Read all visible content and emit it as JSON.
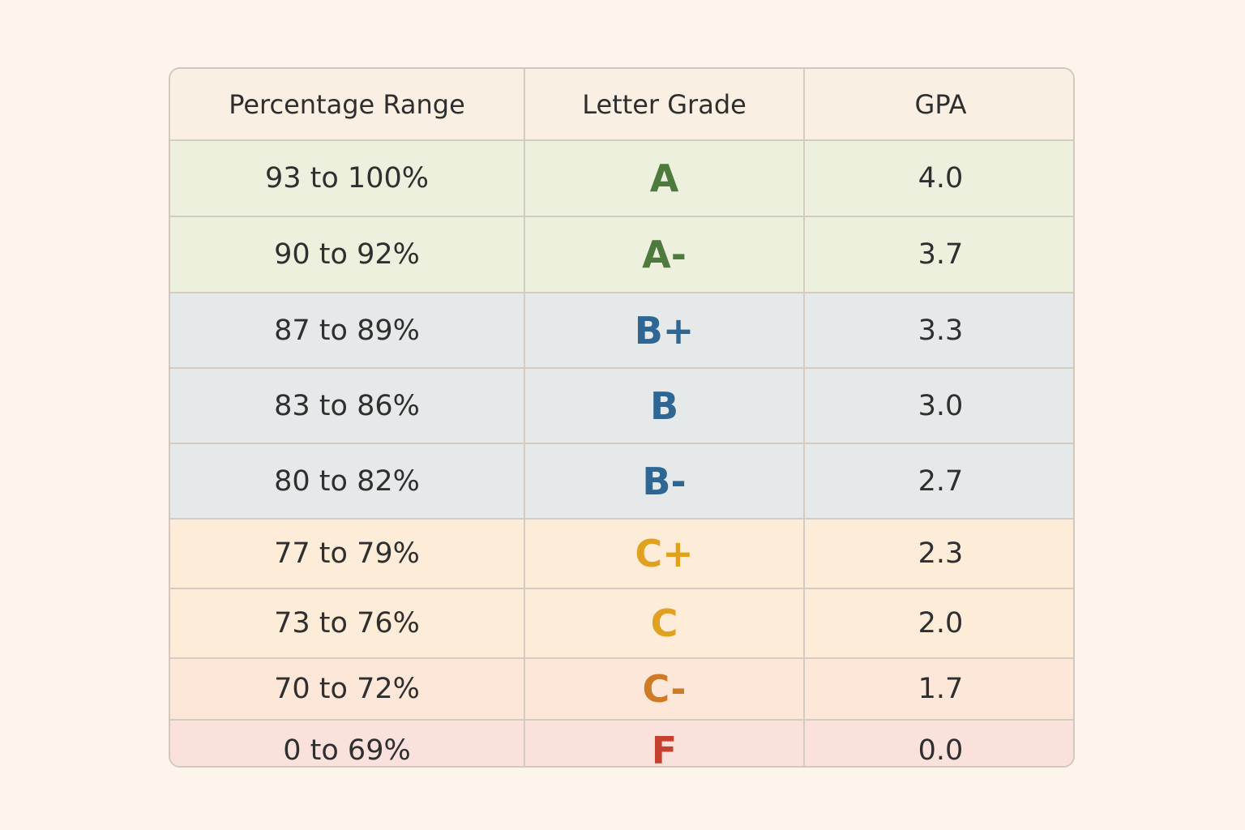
{
  "colors": {
    "background": "#fdf4ec",
    "grade_a": "#4e7a3d",
    "grade_b": "#2f6794",
    "grade_c": "#e0a020",
    "grade_c_minus": "#cf7a25",
    "grade_f": "#c5412f"
  },
  "table": {
    "headers": [
      "Percentage Range",
      "Letter Grade",
      "GPA"
    ],
    "rows": [
      {
        "range": "93 to 100%",
        "grade": "A",
        "gpa": "4.0",
        "group": "a",
        "color": "#4e7a3d"
      },
      {
        "range": "90 to 92%",
        "grade": "A-",
        "gpa": "3.7",
        "group": "a",
        "color": "#4e7a3d"
      },
      {
        "range": "87 to 89%",
        "grade": "B+",
        "gpa": "3.3",
        "group": "b",
        "color": "#2f6794"
      },
      {
        "range": "83 to 86%",
        "grade": "B",
        "gpa": "3.0",
        "group": "b",
        "color": "#2f6794"
      },
      {
        "range": "80 to 82%",
        "grade": "B-",
        "gpa": "2.7",
        "group": "b",
        "color": "#2f6794"
      },
      {
        "range": "77 to 79%",
        "grade": "C+",
        "gpa": "2.3",
        "group": "c",
        "color": "#e0a020"
      },
      {
        "range": "73 to 76%",
        "grade": "C",
        "gpa": "2.0",
        "group": "c",
        "color": "#e0a020"
      },
      {
        "range": "70 to 72%",
        "grade": "C-",
        "gpa": "1.7",
        "group": "cm",
        "color": "#cf7a25"
      },
      {
        "range": "0 to 69%",
        "grade": "F",
        "gpa": "0.0",
        "group": "f",
        "color": "#c5412f"
      }
    ]
  }
}
